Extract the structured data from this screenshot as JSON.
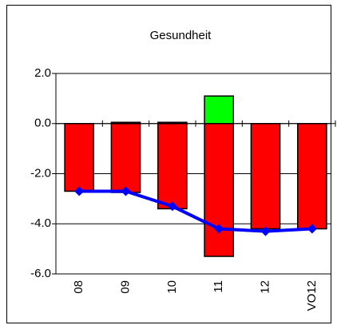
{
  "chart_data": {
    "type": "bar",
    "title": "Gesundheit",
    "categories": [
      "08",
      "09",
      "10",
      "11",
      "12",
      "VO12"
    ],
    "series": [
      {
        "type": "bar",
        "color": "#ff0000",
        "values": [
          -2.7,
          -2.75,
          -3.4,
          -5.3,
          -4.2,
          -4.2
        ]
      },
      {
        "type": "bar",
        "colors": [
          "#ff0000",
          "#ff0000",
          "#ff0000",
          "#00ff00",
          "#ff0000",
          "#ff0000"
        ],
        "values": [
          0,
          0.05,
          0.05,
          1.1,
          0,
          0
        ]
      },
      {
        "type": "line",
        "color": "#0000ff",
        "values": [
          -2.7,
          -2.7,
          -3.3,
          -4.2,
          -4.3,
          -4.2
        ]
      }
    ],
    "ylim": [
      -6,
      2
    ],
    "yticks": [
      {
        "value": 2,
        "label": "2.0"
      },
      {
        "value": 0,
        "label": "0.0"
      },
      {
        "value": -2,
        "label": "-2.0"
      },
      {
        "value": -4,
        "label": "-4.0"
      },
      {
        "value": -6,
        "label": "-6.0"
      }
    ],
    "grid": true
  }
}
